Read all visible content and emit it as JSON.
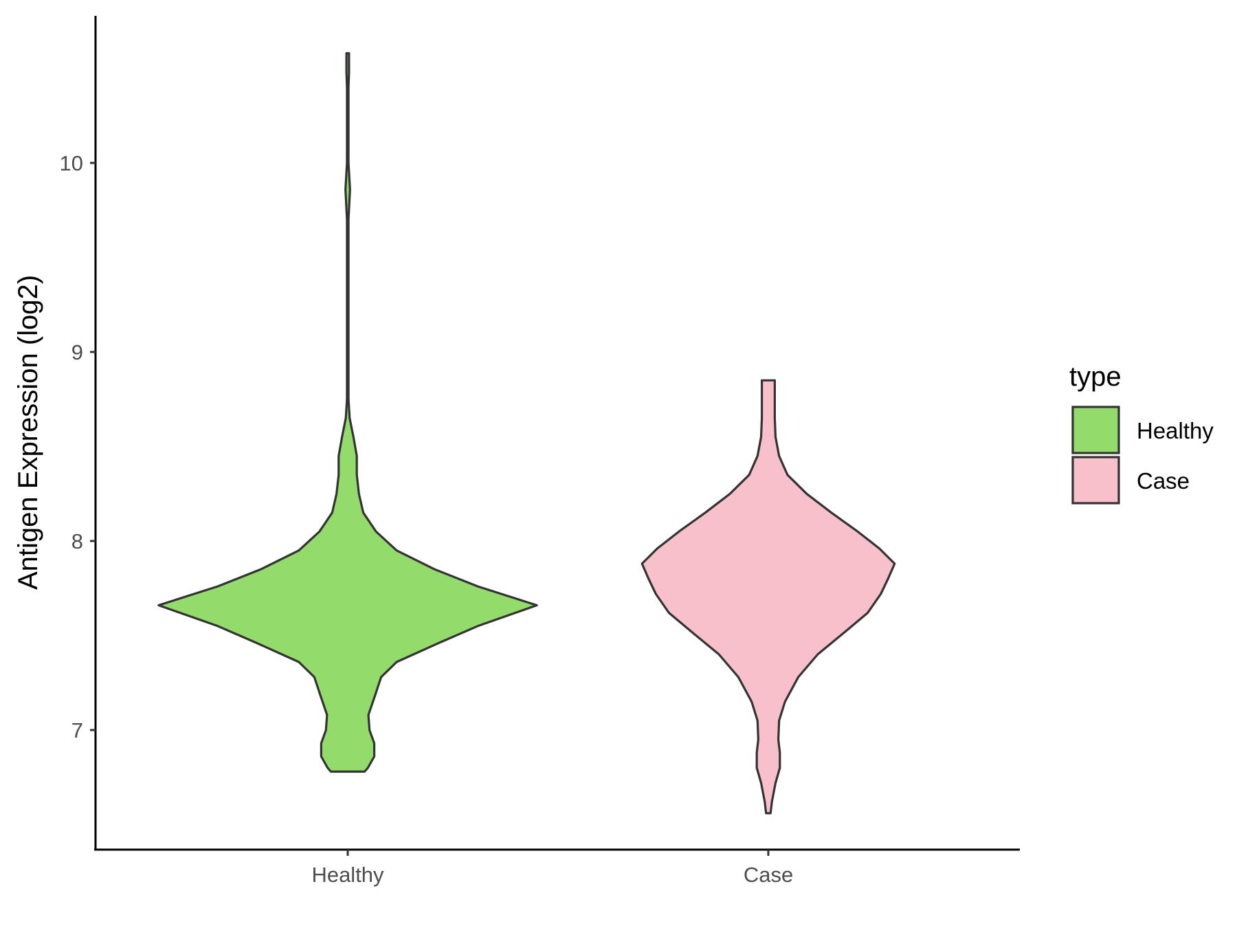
{
  "chart_data": {
    "type": "violin",
    "ylabel": "Antigen Expression (log2)",
    "xlabel": "",
    "categories": [
      "Healthy",
      "Case"
    ],
    "yticks": [
      7,
      8,
      9,
      10
    ],
    "ylim": [
      6.37,
      10.78
    ],
    "grid": false,
    "legend": {
      "title": "type",
      "position": "right",
      "entries": [
        {
          "label": "Healthy",
          "color": "#93DB6A"
        },
        {
          "label": "Case",
          "color": "#F7C0CB"
        }
      ]
    },
    "series": [
      {
        "category": "Healthy",
        "color": "#93DB6A",
        "min": 6.78,
        "max": 10.58,
        "profile": [
          [
            6.78,
            0.089
          ],
          [
            6.8,
            0.106
          ],
          [
            6.86,
            0.14
          ],
          [
            6.93,
            0.14
          ],
          [
            7.0,
            0.115
          ],
          [
            7.08,
            0.109
          ],
          [
            7.18,
            0.143
          ],
          [
            7.28,
            0.176
          ],
          [
            7.36,
            0.258
          ],
          [
            7.46,
            0.479
          ],
          [
            7.55,
            0.685
          ],
          [
            7.66,
            0.997
          ],
          [
            7.76,
            0.685
          ],
          [
            7.85,
            0.459
          ],
          [
            7.95,
            0.258
          ],
          [
            8.05,
            0.149
          ],
          [
            8.15,
            0.082
          ],
          [
            8.25,
            0.059
          ],
          [
            8.35,
            0.048
          ],
          [
            8.45,
            0.048
          ],
          [
            8.55,
            0.03
          ],
          [
            8.65,
            0.01
          ],
          [
            8.75,
            0.004
          ],
          [
            9.0,
            0.004
          ],
          [
            9.5,
            0.004
          ],
          [
            9.7,
            0.004
          ],
          [
            9.86,
            0.012
          ],
          [
            10.0,
            0.004
          ],
          [
            10.4,
            0.004
          ],
          [
            10.48,
            0.007
          ],
          [
            10.58,
            0.007
          ]
        ]
      },
      {
        "category": "Case",
        "color": "#F7C0CB",
        "min": 6.56,
        "max": 8.85,
        "profile": [
          [
            6.56,
            0.012
          ],
          [
            6.62,
            0.019
          ],
          [
            6.72,
            0.038
          ],
          [
            6.8,
            0.061
          ],
          [
            6.88,
            0.061
          ],
          [
            6.95,
            0.053
          ],
          [
            7.05,
            0.057
          ],
          [
            7.15,
            0.088
          ],
          [
            7.28,
            0.158
          ],
          [
            7.4,
            0.26
          ],
          [
            7.52,
            0.405
          ],
          [
            7.62,
            0.524
          ],
          [
            7.72,
            0.593
          ],
          [
            7.8,
            0.631
          ],
          [
            7.88,
            0.666
          ],
          [
            7.96,
            0.586
          ],
          [
            8.05,
            0.471
          ],
          [
            8.15,
            0.332
          ],
          [
            8.25,
            0.202
          ],
          [
            8.35,
            0.101
          ],
          [
            8.45,
            0.057
          ],
          [
            8.55,
            0.038
          ],
          [
            8.65,
            0.034
          ],
          [
            8.75,
            0.034
          ],
          [
            8.85,
            0.034
          ]
        ]
      }
    ]
  }
}
